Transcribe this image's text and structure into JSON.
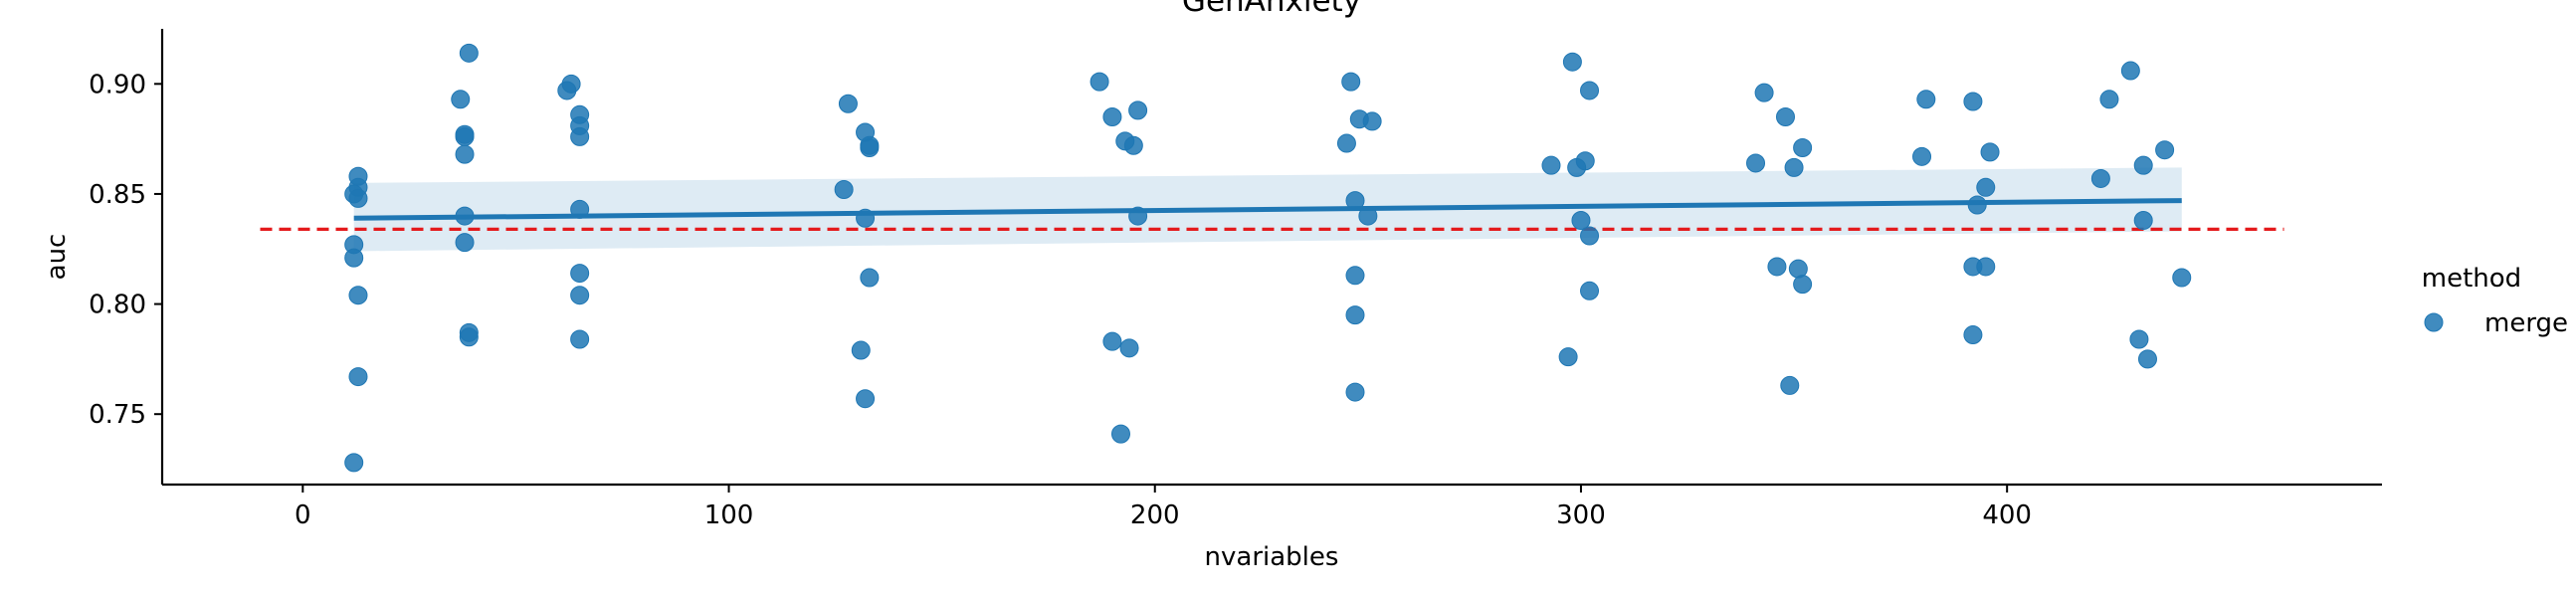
{
  "chart_data": {
    "type": "scatter",
    "title": "GenAnxiety",
    "xlabel": "nvariables",
    "ylabel": "auc",
    "xlim": [
      -33,
      488
    ],
    "ylim": [
      0.718,
      0.925
    ],
    "xticks": [
      0,
      100,
      200,
      300,
      400
    ],
    "yticks": [
      0.75,
      0.8,
      0.85,
      0.9
    ],
    "xtick_labels": [
      "0",
      "100",
      "200",
      "300",
      "400"
    ],
    "ytick_labels": [
      "0.75",
      "0.80",
      "0.85",
      "0.90"
    ],
    "grid": false,
    "legend": {
      "title": "method",
      "entries": [
        "merge"
      ],
      "placement": "right"
    },
    "colors": {
      "points": "#1f77b4",
      "regression": "#1f77b4",
      "ci_band": "#1f77b4",
      "reference": "#e41a1c"
    },
    "reference_line": {
      "y": 0.834,
      "x_range": [
        -10,
        465
      ],
      "style": "dashed"
    },
    "regression": {
      "x": [
        12,
        441
      ],
      "y": [
        0.839,
        0.847
      ],
      "ci_lower": [
        0.824,
        0.833
      ],
      "ci_upper": [
        0.855,
        0.862
      ]
    },
    "series": [
      {
        "name": "merge",
        "points": [
          [
            12,
            0.85
          ],
          [
            12,
            0.827
          ],
          [
            12,
            0.821
          ],
          [
            12,
            0.728
          ],
          [
            13,
            0.853
          ],
          [
            13,
            0.848
          ],
          [
            13,
            0.804
          ],
          [
            13,
            0.767
          ],
          [
            13,
            0.858
          ],
          [
            37,
            0.893
          ],
          [
            38,
            0.876
          ],
          [
            38,
            0.877
          ],
          [
            38,
            0.868
          ],
          [
            38,
            0.84
          ],
          [
            38,
            0.828
          ],
          [
            39,
            0.914
          ],
          [
            39,
            0.787
          ],
          [
            39,
            0.785
          ],
          [
            62,
            0.897
          ],
          [
            63,
            0.9
          ],
          [
            65,
            0.886
          ],
          [
            65,
            0.881
          ],
          [
            65,
            0.876
          ],
          [
            65,
            0.843
          ],
          [
            65,
            0.814
          ],
          [
            65,
            0.804
          ],
          [
            65,
            0.784
          ],
          [
            127,
            0.852
          ],
          [
            128,
            0.891
          ],
          [
            131,
            0.779
          ],
          [
            132,
            0.757
          ],
          [
            132,
            0.878
          ],
          [
            132,
            0.839
          ],
          [
            133,
            0.871
          ],
          [
            133,
            0.872
          ],
          [
            133,
            0.812
          ],
          [
            187,
            0.901
          ],
          [
            190,
            0.885
          ],
          [
            190,
            0.783
          ],
          [
            192,
            0.741
          ],
          [
            193,
            0.874
          ],
          [
            194,
            0.78
          ],
          [
            195,
            0.872
          ],
          [
            196,
            0.888
          ],
          [
            196,
            0.84
          ],
          [
            245,
            0.873
          ],
          [
            246,
            0.901
          ],
          [
            247,
            0.847
          ],
          [
            247,
            0.813
          ],
          [
            247,
            0.795
          ],
          [
            247,
            0.76
          ],
          [
            248,
            0.884
          ],
          [
            250,
            0.84
          ],
          [
            251,
            0.883
          ],
          [
            293,
            0.863
          ],
          [
            297,
            0.776
          ],
          [
            298,
            0.91
          ],
          [
            299,
            0.862
          ],
          [
            300,
            0.838
          ],
          [
            301,
            0.865
          ],
          [
            302,
            0.897
          ],
          [
            302,
            0.831
          ],
          [
            302,
            0.806
          ],
          [
            341,
            0.864
          ],
          [
            343,
            0.896
          ],
          [
            346,
            0.817
          ],
          [
            348,
            0.885
          ],
          [
            349,
            0.763
          ],
          [
            350,
            0.862
          ],
          [
            351,
            0.816
          ],
          [
            352,
            0.871
          ],
          [
            352,
            0.809
          ],
          [
            380,
            0.867
          ],
          [
            381,
            0.893
          ],
          [
            392,
            0.892
          ],
          [
            392,
            0.817
          ],
          [
            392,
            0.786
          ],
          [
            393,
            0.845
          ],
          [
            395,
            0.853
          ],
          [
            395,
            0.817
          ],
          [
            396,
            0.869
          ],
          [
            422,
            0.857
          ],
          [
            424,
            0.893
          ],
          [
            429,
            0.906
          ],
          [
            431,
            0.784
          ],
          [
            432,
            0.838
          ],
          [
            432,
            0.863
          ],
          [
            433,
            0.775
          ],
          [
            437,
            0.87
          ],
          [
            441,
            0.812
          ]
        ]
      }
    ]
  }
}
